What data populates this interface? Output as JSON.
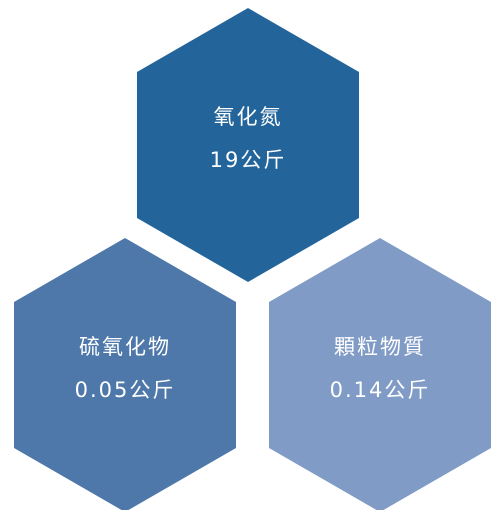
{
  "diagram": {
    "items": [
      {
        "name": "氧化氮",
        "amount": "19公斤",
        "color": "#23659b"
      },
      {
        "name": "硫氧化物",
        "amount": "0.05公斤",
        "color": "#4e78aa"
      },
      {
        "name": "顆粒物質",
        "amount": "0.14公斤",
        "color": "#809bc6"
      }
    ]
  }
}
